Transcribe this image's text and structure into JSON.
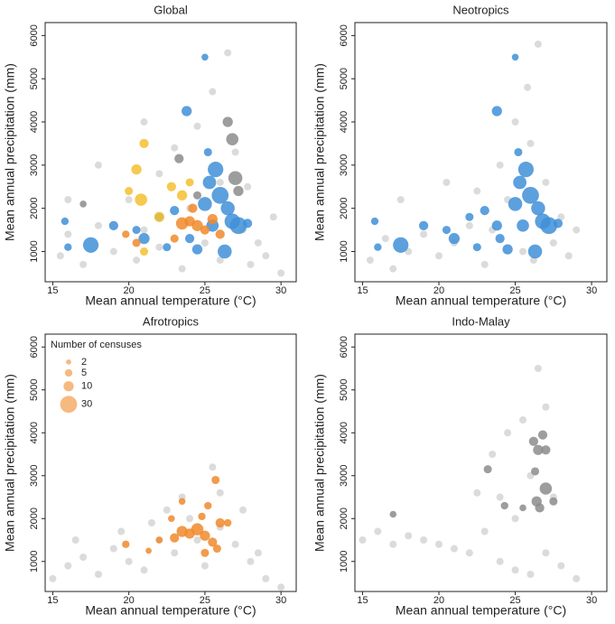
{
  "chart_data": [
    {
      "type": "scatter",
      "title": "Global",
      "x_label": "Mean annual temperature (°C)",
      "y_label": "Mean annual precipitation (mm)",
      "xlim": [
        14.5,
        31
      ],
      "ylim": [
        300,
        6300
      ],
      "xticks": [
        15,
        20,
        25,
        30
      ],
      "yticks": [
        1000,
        2000,
        3000,
        4000,
        5000,
        6000
      ],
      "series": [
        {
          "color": "#cccccc",
          "x": [
            15.5,
            16,
            17,
            18,
            19,
            20,
            20.5,
            21,
            22,
            22,
            23,
            23.5,
            24,
            24.5,
            25,
            25.5,
            26,
            26.5,
            26,
            27,
            27.5,
            28,
            28.5,
            29,
            30,
            18,
            21,
            16,
            29.5,
            27.8
          ],
          "y": [
            900,
            1400,
            700,
            1600,
            1000,
            2200,
            800,
            1500,
            2800,
            1100,
            3400,
            600,
            2000,
            3900,
            1200,
            4700,
            2600,
            5600,
            800,
            3300,
            1500,
            700,
            1200,
            900,
            500,
            3000,
            4000,
            2200,
            1800,
            2500
          ]
        },
        {
          "color": "#3f8fd8",
          "x": [
            17.5,
            16,
            15.8,
            19,
            20.5,
            21,
            22,
            23,
            23.8,
            24,
            25,
            25.3,
            25.7,
            26,
            26.5,
            26.8,
            27.2,
            25.5,
            24.5,
            26.3,
            27.8,
            25.2,
            25,
            22.5
          ],
          "y": [
            1150,
            1100,
            1700,
            1600,
            1500,
            1300,
            1800,
            1950,
            4250,
            1300,
            2100,
            2600,
            2900,
            2300,
            2000,
            1700,
            1600,
            1600,
            1050,
            1000,
            1650,
            3300,
            5500,
            1100
          ],
          "sizes": [
            25,
            5,
            5,
            8,
            6,
            12,
            6,
            8,
            10,
            8,
            20,
            18,
            25,
            30,
            20,
            25,
            30,
            15,
            10,
            20,
            8,
            6,
            4,
            6
          ]
        },
        {
          "color": "#f08a2c",
          "x": [
            23.5,
            24,
            24.5,
            25,
            25.5,
            26,
            23,
            20.5,
            24.2,
            19.8
          ],
          "y": [
            1650,
            1700,
            1600,
            1500,
            1750,
            1400,
            1300,
            1200,
            2000,
            1400
          ],
          "sizes": [
            15,
            10,
            12,
            8,
            10,
            8,
            6,
            6,
            8,
            5
          ]
        },
        {
          "color": "#f5c030",
          "x": [
            20.8,
            21,
            20.5,
            22,
            22.8,
            23.5,
            21,
            20,
            24
          ],
          "y": [
            2200,
            3500,
            2900,
            1800,
            2500,
            2300,
            1000,
            2400,
            2600
          ],
          "sizes": [
            15,
            8,
            10,
            10,
            8,
            10,
            6,
            6,
            6
          ]
        },
        {
          "color": "#8c8c8c",
          "x": [
            26.5,
            26.8,
            27,
            27.2,
            23.3,
            17,
            24.5
          ],
          "y": [
            4000,
            3600,
            2700,
            2400,
            3150,
            2100,
            2300
          ],
          "sizes": [
            10,
            15,
            20,
            10,
            8,
            4,
            6
          ]
        }
      ]
    },
    {
      "type": "scatter",
      "title": "Neotropics",
      "x_label": "Mean annual temperature (°C)",
      "y_label": "Mean annual precipitation (mm)",
      "xlim": [
        14.5,
        31
      ],
      "ylim": [
        300,
        6300
      ],
      "xticks": [
        15,
        20,
        25,
        30
      ],
      "yticks": [
        1000,
        2000,
        3000,
        4000,
        5000,
        6000
      ],
      "series": [
        {
          "color": "#cccccc",
          "x": [
            15.5,
            16.5,
            17,
            18,
            19,
            20,
            21,
            22,
            22.5,
            23,
            23.5,
            24,
            24.5,
            25,
            25.5,
            26,
            26.5,
            27,
            27.5,
            28,
            28.5,
            29,
            17.5,
            20.5,
            25.8,
            26.2
          ],
          "y": [
            800,
            1300,
            600,
            1000,
            1400,
            900,
            1200,
            1600,
            2400,
            700,
            1500,
            3000,
            2200,
            4000,
            1000,
            3500,
            5800,
            2600,
            1200,
            1800,
            900,
            1500,
            2200,
            2600,
            4800,
            800
          ]
        },
        {
          "color": "#3f8fd8",
          "x": [
            17.5,
            16,
            15.8,
            19,
            20.5,
            21,
            22,
            23,
            23.8,
            24,
            25,
            25.3,
            25.7,
            26,
            26.5,
            26.8,
            27.2,
            25.5,
            24.5,
            26.3,
            27.8,
            25.2,
            25,
            22.5,
            23.8
          ],
          "y": [
            1150,
            1100,
            1700,
            1600,
            1500,
            1300,
            1800,
            1950,
            4250,
            1300,
            2100,
            2600,
            2900,
            2300,
            2000,
            1700,
            1600,
            1600,
            1050,
            1000,
            1650,
            3300,
            5500,
            1100,
            1600
          ],
          "sizes": [
            25,
            5,
            5,
            8,
            6,
            12,
            6,
            8,
            10,
            8,
            20,
            18,
            25,
            30,
            20,
            25,
            30,
            15,
            10,
            20,
            8,
            6,
            4,
            6,
            10
          ]
        }
      ]
    },
    {
      "type": "scatter",
      "title": "Afrotropics",
      "x_label": "Mean annual temperature (°C)",
      "y_label": "Mean annual precipitation (mm)",
      "xlim": [
        14.5,
        31
      ],
      "ylim": [
        300,
        6300
      ],
      "xticks": [
        15,
        20,
        25,
        30
      ],
      "yticks": [
        1000,
        2000,
        3000,
        4000,
        5000,
        6000
      ],
      "legend": {
        "title": "Number of censuses",
        "sizes": [
          2,
          5,
          10,
          30
        ]
      },
      "series": [
        {
          "color": "#cccccc",
          "x": [
            15,
            16,
            17,
            18,
            19,
            20,
            21,
            22,
            23,
            24,
            25,
            26,
            27,
            28,
            29,
            30,
            16.5,
            19.5,
            22.5,
            24.5,
            25.5,
            26,
            27.5,
            28.5,
            21.5,
            23.5
          ],
          "y": [
            600,
            900,
            1100,
            700,
            1300,
            1000,
            800,
            1500,
            1200,
            2000,
            900,
            2600,
            1400,
            1000,
            600,
            400,
            1500,
            1700,
            2200,
            1500,
            3200,
            1800,
            2200,
            1200,
            1900,
            2500
          ]
        },
        {
          "color": "#f08a2c",
          "x": [
            19.8,
            21.3,
            22,
            23,
            23.5,
            24,
            24.5,
            25,
            25.5,
            25.8,
            26,
            25.7,
            25.2,
            23.5,
            24.8,
            26.5,
            22.8,
            25
          ],
          "y": [
            1400,
            1250,
            1500,
            1550,
            1700,
            1650,
            1750,
            1600,
            1450,
            1300,
            1900,
            2900,
            2300,
            2400,
            2050,
            1900,
            2000,
            1200
          ],
          "sizes": [
            5,
            3,
            4,
            8,
            12,
            10,
            15,
            10,
            8,
            6,
            8,
            6,
            5,
            4,
            5,
            5,
            4,
            6
          ]
        }
      ]
    },
    {
      "type": "scatter",
      "title": "Indo-Malay",
      "x_label": "Mean annual temperature (°C)",
      "y_label": "Mean annual precipitation (mm)",
      "xlim": [
        14.5,
        31
      ],
      "ylim": [
        300,
        6300
      ],
      "xticks": [
        15,
        20,
        25,
        30
      ],
      "yticks": [
        1000,
        2000,
        3000,
        4000,
        5000,
        6000
      ],
      "series": [
        {
          "color": "#cccccc",
          "x": [
            15,
            16,
            17,
            18,
            19,
            20,
            21,
            22,
            23,
            24,
            25,
            26,
            27,
            28,
            29,
            23.5,
            24.5,
            25.5,
            26.5,
            27.5,
            24,
            26,
            22.5,
            27,
            25
          ],
          "y": [
            1500,
            1700,
            1400,
            1600,
            1500,
            1400,
            1300,
            1200,
            1700,
            2500,
            800,
            3000,
            1200,
            900,
            600,
            3500,
            4000,
            4300,
            5500,
            2500,
            1000,
            700,
            2600,
            4600,
            2000
          ]
        },
        {
          "color": "#8c8c8c",
          "x": [
            17,
            23.2,
            24.3,
            25.5,
            26.2,
            26.5,
            26.8,
            27,
            27,
            26.4,
            27.5,
            26.3,
            26.6
          ],
          "y": [
            2100,
            3150,
            2300,
            2250,
            3800,
            3600,
            3950,
            3600,
            2700,
            2400,
            2400,
            3100,
            2250
          ],
          "sizes": [
            4,
            6,
            5,
            4,
            8,
            10,
            8,
            8,
            15,
            10,
            6,
            6,
            8
          ]
        }
      ]
    }
  ]
}
